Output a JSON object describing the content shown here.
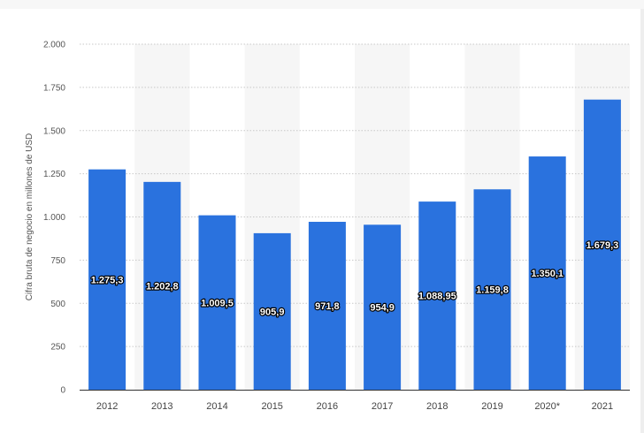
{
  "chart_data": {
    "type": "bar",
    "categories": [
      "2012",
      "2013",
      "2014",
      "2015",
      "2016",
      "2017",
      "2018",
      "2019",
      "2020*",
      "2021"
    ],
    "values": [
      1275.3,
      1202.8,
      1009.5,
      905.9,
      971.8,
      954.9,
      1088.95,
      1159.8,
      1350.1,
      1679.3
    ],
    "data_labels": [
      "1.275,3",
      "1.202,8",
      "1.009,5",
      "905,9",
      "971,8",
      "954,9",
      "1.088,95",
      "1.159,8",
      "1.350,1",
      "1.679,3"
    ],
    "ylabel": "Cifra bruta de negocio en millones de USD",
    "xlabel": "",
    "ylim": [
      0,
      2000
    ],
    "yticks": [
      0,
      250,
      500,
      750,
      1000,
      1250,
      1500,
      1750,
      2000
    ],
    "ytick_labels": [
      "0",
      "250",
      "500",
      "750",
      "1.000",
      "1.250",
      "1.500",
      "1.750",
      "2.000"
    ],
    "grid": true,
    "legend": "none",
    "colors": {
      "bar": "#2a72de",
      "band": "#f6f6f6",
      "grid": "#c8c8c8",
      "axis": "#333333"
    }
  }
}
